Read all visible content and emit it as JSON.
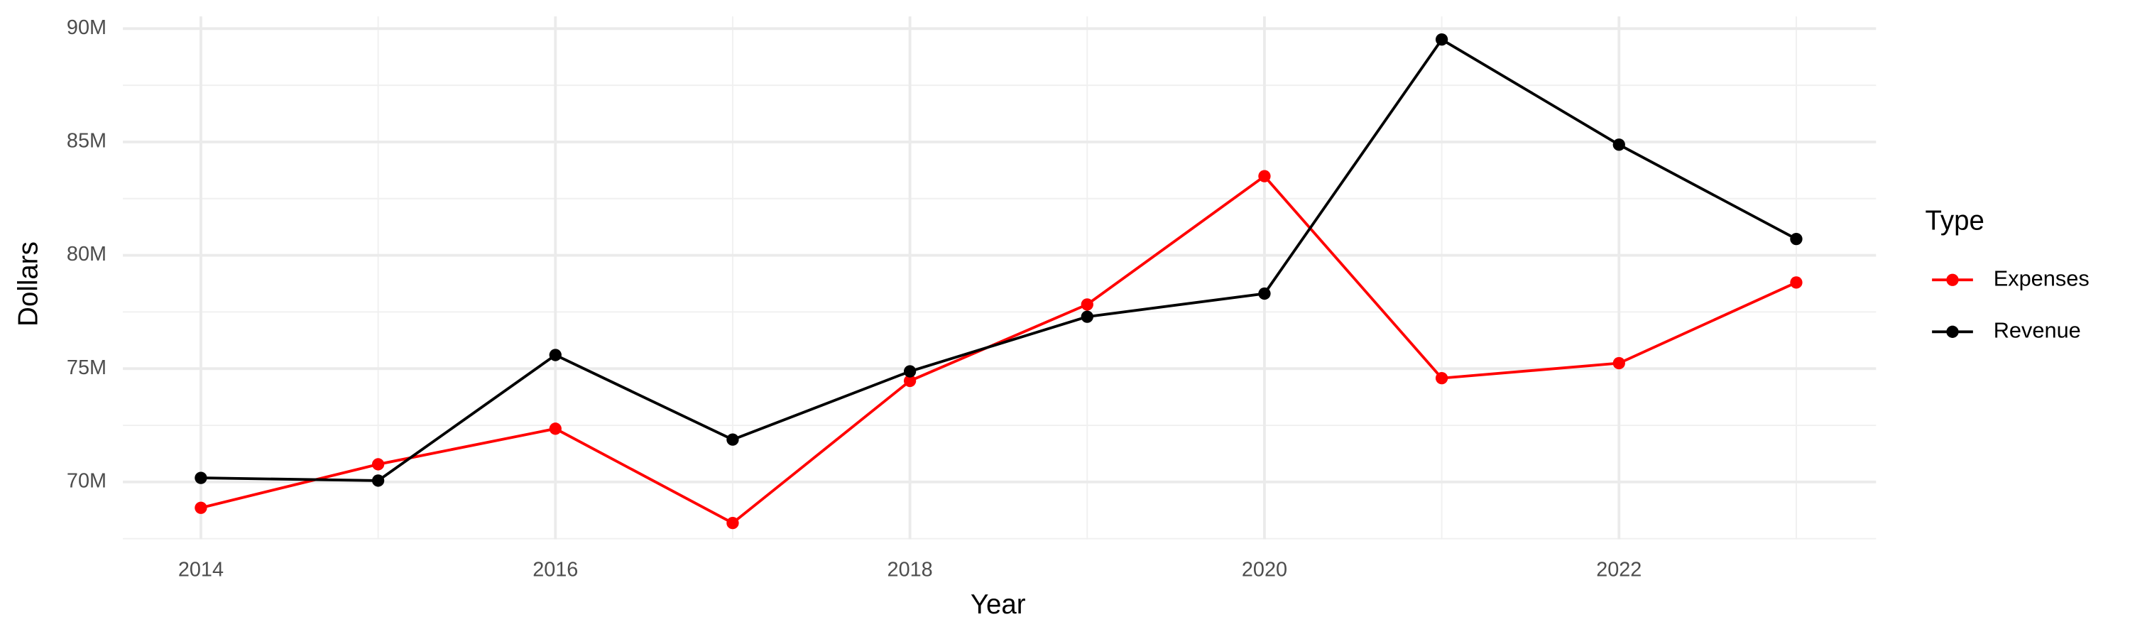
{
  "chart_data": {
    "type": "line",
    "x_label": "Year",
    "y_label": "Dollars",
    "legend_title": "Type",
    "legend": "right",
    "grid": true,
    "x": [
      2014,
      2015,
      2016,
      2017,
      2018,
      2019,
      2020,
      2021,
      2022,
      2023
    ],
    "series": [
      {
        "name": "Expenses",
        "color": "#ff0000",
        "values": [
          68860000,
          70780000,
          72350000,
          68190000,
          74460000,
          77830000,
          83490000,
          74580000,
          75240000,
          78800000
        ]
      },
      {
        "name": "Revenue",
        "color": "#000000",
        "values": [
          70180000,
          70060000,
          75600000,
          71870000,
          74880000,
          77290000,
          78310000,
          89520000,
          84880000,
          80720000
        ]
      }
    ],
    "xlim": [
      2013.56,
      2023.45
    ],
    "xticks": [
      2014,
      2016,
      2018,
      2020,
      2022
    ],
    "ylim": [
      67470000,
      90540000
    ],
    "yticks": [
      {
        "value": 70000000,
        "label": "70M"
      },
      {
        "value": 75000000,
        "label": "75M"
      },
      {
        "value": 80000000,
        "label": "80M"
      },
      {
        "value": 85000000,
        "label": "85M"
      },
      {
        "value": 90000000,
        "label": "90M"
      }
    ]
  }
}
